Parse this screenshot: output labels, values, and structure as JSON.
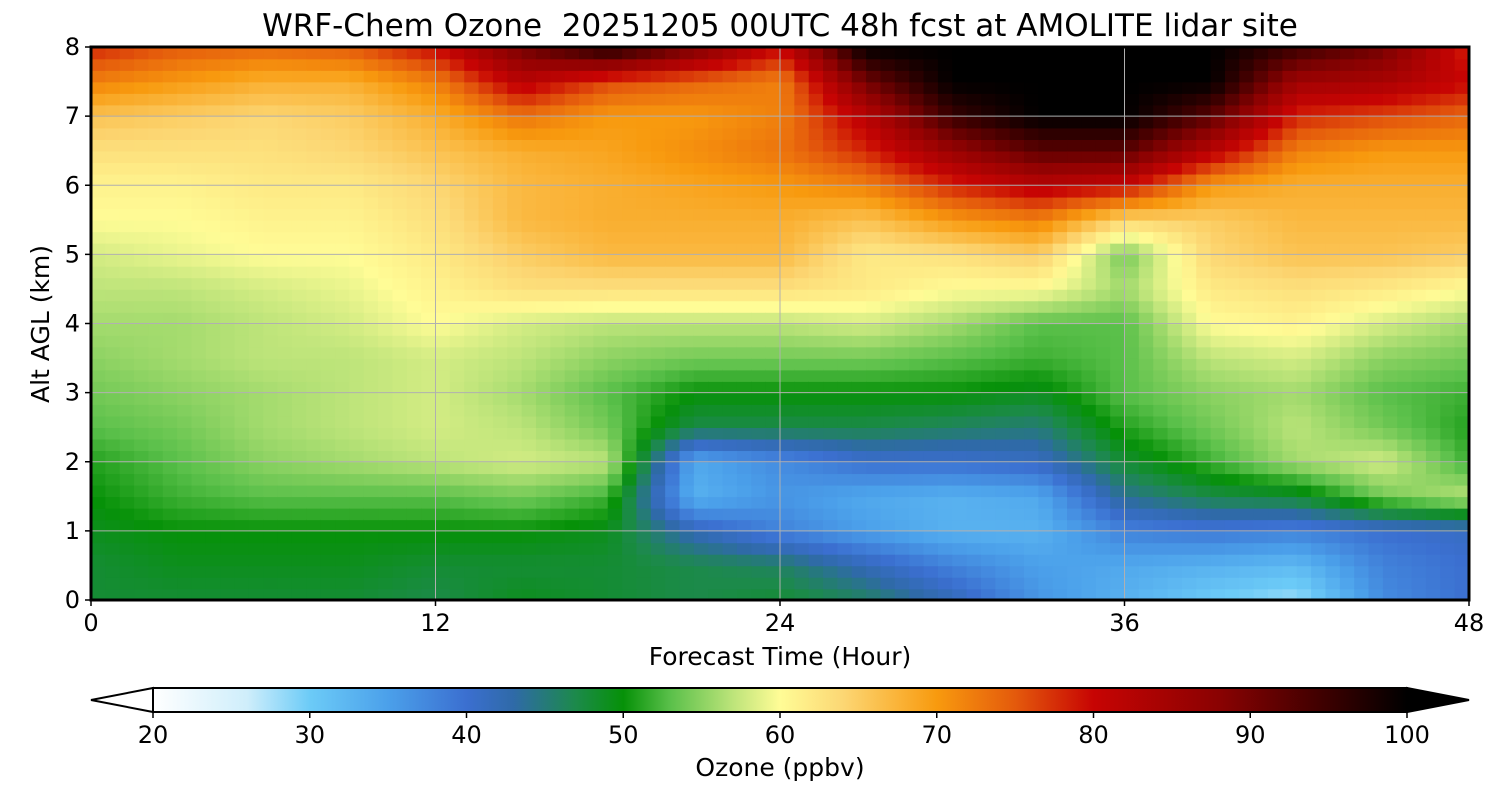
{
  "chart_data": {
    "type": "heatmap",
    "title": "WRF-Chem Ozone  20251205 00UTC 48h fcst at AMOLITE lidar site",
    "xlabel": "Forecast Time (Hour)",
    "ylabel": "Alt AGL (km)",
    "xlim": [
      0,
      48
    ],
    "ylim": [
      0,
      8
    ],
    "x_ticks": [
      "0",
      "12",
      "24",
      "36",
      "48"
    ],
    "y_ticks": [
      "0",
      "1",
      "2",
      "3",
      "4",
      "5",
      "6",
      "7",
      "8"
    ],
    "grid": true,
    "x": [
      0,
      3,
      6,
      9,
      12,
      15,
      18,
      21,
      24,
      27,
      30,
      33,
      36,
      39,
      42,
      45,
      48
    ],
    "y": [
      0,
      0.5,
      1,
      1.5,
      2,
      2.5,
      3,
      3.5,
      4,
      4.5,
      5,
      5.5,
      6,
      6.5,
      7,
      7.5,
      8
    ],
    "z": [
      [
        48,
        48,
        48,
        48,
        47,
        49,
        48,
        47,
        48,
        46,
        42,
        36,
        33,
        30,
        28,
        37,
        40
      ],
      [
        48,
        49,
        49,
        49,
        48,
        48,
        48,
        47,
        46,
        42,
        38,
        35,
        34,
        33,
        32,
        38,
        40
      ],
      [
        49,
        50,
        50,
        50,
        50,
        50,
        49,
        42,
        38,
        35,
        33,
        33,
        38,
        39,
        38,
        40,
        41
      ],
      [
        50,
        52,
        53,
        53,
        53,
        54,
        52,
        33,
        36,
        34,
        33,
        34,
        44,
        47,
        48,
        54,
        57
      ],
      [
        51,
        53,
        55,
        56,
        57,
        58,
        57,
        34,
        37,
        40,
        40,
        41,
        48,
        52,
        56,
        58,
        52
      ],
      [
        53,
        54,
        56,
        57,
        58,
        57,
        54,
        47,
        47,
        47,
        46,
        45,
        51,
        54,
        57,
        54,
        51
      ],
      [
        54,
        55,
        56,
        57,
        58,
        56,
        53,
        50,
        50,
        50,
        50,
        49,
        53,
        55,
        56,
        53,
        52
      ],
      [
        55,
        56,
        57,
        57,
        58,
        57,
        55,
        54,
        54,
        54,
        53,
        52,
        53,
        57,
        58,
        55,
        54
      ],
      [
        56,
        56,
        57,
        58,
        60,
        58,
        57,
        57,
        57,
        58,
        56,
        53,
        53,
        60,
        61,
        58,
        56
      ],
      [
        57,
        57,
        58,
        59,
        61,
        63,
        63,
        63,
        63,
        62,
        60,
        60,
        56,
        62,
        63,
        62,
        60
      ],
      [
        58,
        59,
        60,
        60,
        62,
        65,
        67,
        67,
        67,
        62,
        63,
        65,
        54,
        64,
        66,
        66,
        65
      ],
      [
        60,
        60,
        61,
        61,
        63,
        67,
        68,
        68,
        68,
        66,
        70,
        72,
        64,
        65,
        67,
        67,
        67
      ],
      [
        61,
        61,
        62,
        62,
        64,
        67,
        68,
        69,
        70,
        72,
        78,
        82,
        80,
        70,
        68,
        68,
        68
      ],
      [
        63,
        63,
        63,
        64,
        66,
        68,
        69,
        71,
        73,
        78,
        86,
        92,
        92,
        82,
        72,
        70,
        70
      ],
      [
        66,
        65,
        64,
        65,
        68,
        73,
        70,
        70,
        72,
        82,
        95,
        100,
        100,
        92,
        78,
        76,
        74
      ],
      [
        72,
        70,
        68,
        68,
        72,
        82,
        76,
        74,
        72,
        90,
        100,
        100,
        100,
        100,
        85,
        84,
        80
      ],
      [
        78,
        75,
        74,
        75,
        80,
        90,
        98,
        90,
        80,
        100,
        100,
        100,
        100,
        100,
        95,
        90,
        78
      ]
    ],
    "colorbar": {
      "label": "Ozone  (ppbv)",
      "range": [
        20,
        100
      ],
      "extend": "both",
      "tick_labels": [
        "20",
        "30",
        "40",
        "50",
        "60",
        "70",
        "80",
        "90",
        "100"
      ],
      "color_stops": [
        {
          "value": 20,
          "color": "#ffffff"
        },
        {
          "value": 26,
          "color": "#cfeefb"
        },
        {
          "value": 30,
          "color": "#6ccbf7"
        },
        {
          "value": 35,
          "color": "#4ba0ea"
        },
        {
          "value": 40,
          "color": "#3b6fd0"
        },
        {
          "value": 43,
          "color": "#2f6aa8"
        },
        {
          "value": 47,
          "color": "#1c8a4a"
        },
        {
          "value": 50,
          "color": "#069108"
        },
        {
          "value": 53,
          "color": "#5ac04a"
        },
        {
          "value": 57,
          "color": "#bde47a"
        },
        {
          "value": 60,
          "color": "#fffc96"
        },
        {
          "value": 64,
          "color": "#fcd774"
        },
        {
          "value": 70,
          "color": "#f89a0e"
        },
        {
          "value": 75,
          "color": "#e45a0c"
        },
        {
          "value": 80,
          "color": "#c70403"
        },
        {
          "value": 88,
          "color": "#8a0202"
        },
        {
          "value": 95,
          "color": "#3a0000"
        },
        {
          "value": 100,
          "color": "#000000"
        }
      ]
    }
  }
}
